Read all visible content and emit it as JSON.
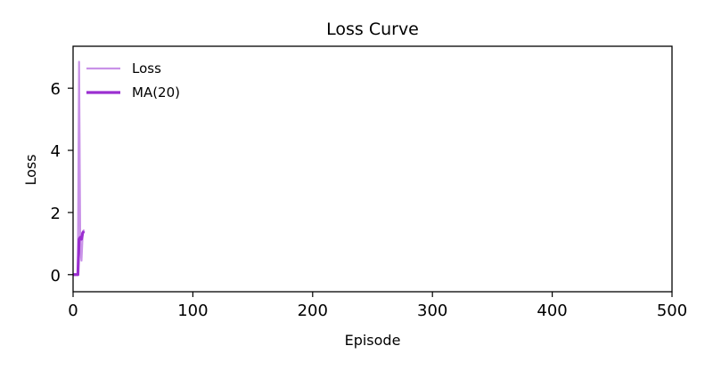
{
  "chart_data": {
    "type": "line",
    "title": "Loss Curve",
    "xlabel": "Episode",
    "ylabel": "Loss",
    "xlim": [
      0,
      500
    ],
    "ylim": [
      -0.55,
      7.35
    ],
    "xticks": [
      0,
      100,
      200,
      300,
      400,
      500
    ],
    "yticks": [
      0,
      2,
      4,
      6
    ],
    "grid": false,
    "legend_position": "top-left",
    "series": [
      {
        "name": "Loss",
        "color": "#c992e8",
        "x": [
          0,
          1,
          2,
          3,
          4,
          5,
          6,
          7,
          8,
          9
        ],
        "y": [
          0,
          0,
          0,
          0,
          0,
          6.85,
          0.85,
          0.45,
          1.3,
          1.45
        ]
      },
      {
        "name": "MA(20)",
        "color": "#9b2fd0",
        "x": [
          0,
          1,
          2,
          3,
          4,
          5,
          6,
          7,
          8,
          9
        ],
        "y": [
          0,
          0,
          0,
          0,
          0,
          1.14,
          1.2,
          1.14,
          1.34,
          1.4
        ]
      }
    ]
  }
}
